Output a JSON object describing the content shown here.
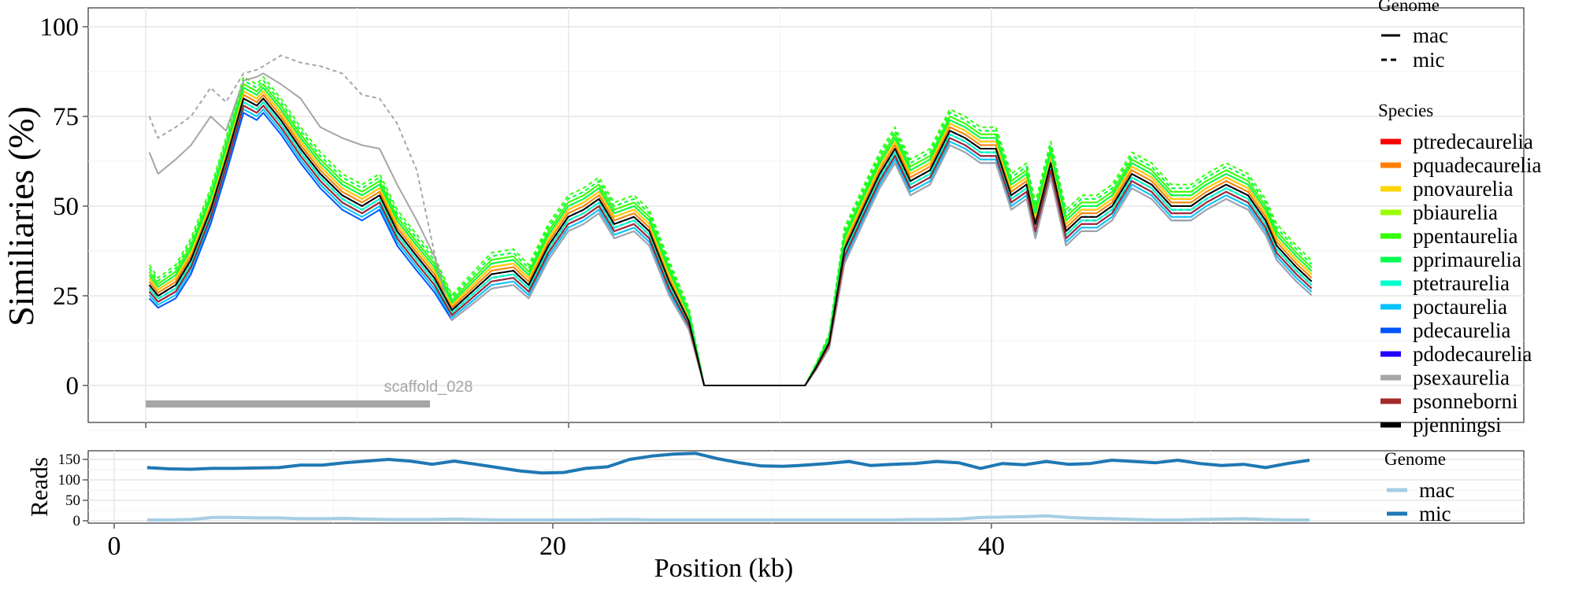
{
  "chart_data": [
    {
      "type": "line",
      "panel": "similarity",
      "ylabel": "Similiaries (%)",
      "xlabel": "",
      "ylim": [
        -10,
        105
      ],
      "xlim": [
        -1.2,
        57.7
      ],
      "yticks": [
        0,
        25,
        50,
        75,
        100
      ],
      "ytick_labels": [
        "0",
        "25",
        "50",
        "75",
        "100"
      ],
      "xticks_unlabeled": [
        1.44,
        20.72,
        40
      ],
      "grid": true,
      "annotation": {
        "label": "scaffold_028",
        "x_start": 1.44,
        "x_end": 14.4,
        "y": -5,
        "color": "#A6A6A6"
      },
      "x": [
        1.6,
        2.0,
        2.8,
        3.5,
        4.4,
        5.1,
        5.9,
        6.5,
        6.8,
        7.6,
        8.5,
        9.4,
        10.4,
        11.3,
        12.1,
        12.9,
        13.8,
        14.6,
        15.4,
        16.3,
        17.2,
        18.2,
        18.9,
        19.8,
        20.7,
        21.4,
        22.1,
        22.8,
        23.7,
        24.4,
        25.3,
        26.2,
        26.9,
        28,
        29,
        30,
        31.5,
        32,
        32.6,
        33.3,
        34.2,
        34.9,
        35.6,
        36.3,
        37.2,
        38.1,
        38.8,
        39.5,
        40.2,
        40.9,
        41.6,
        42.0,
        42.7,
        43.4,
        44.1,
        44.8,
        45.5,
        46.4,
        47.3,
        48.2,
        49.1,
        49.8,
        50.7,
        51.7,
        52.5,
        53.0,
        53.9,
        54.6
      ],
      "base_profile": [
        28,
        25,
        28,
        35,
        49,
        63,
        80,
        78,
        80,
        74,
        66,
        59,
        53,
        50,
        53,
        43,
        36,
        30,
        21,
        26,
        31,
        32,
        28,
        39,
        47,
        49,
        52,
        45,
        47,
        43,
        29,
        18,
        0,
        0,
        0,
        0,
        0,
        5,
        12,
        38,
        50,
        59,
        66,
        57,
        60,
        71,
        69,
        66,
        66,
        53,
        56,
        45,
        62,
        43,
        47,
        47,
        50,
        59,
        56,
        50,
        50,
        53,
        56,
        53,
        46,
        39,
        33,
        29
      ],
      "series_note": "each series = base_profile + offset (scaled toward 0 near zero similarity); early_values override the first points",
      "species": [
        {
          "name": "ptredecaurelia",
          "color": "#FF0000",
          "offset": {
            "mac": 2,
            "mic": 3
          }
        },
        {
          "name": "pquadecaurelia",
          "color": "#FF7F00",
          "offset": {
            "mac": 1,
            "mic": 2
          }
        },
        {
          "name": "pnovaurelia",
          "color": "#FFD500",
          "offset": {
            "mac": 2,
            "mic": 4
          }
        },
        {
          "name": "pbiaurelia",
          "color": "#99FF00",
          "offset": {
            "mac": 3,
            "mic": 5
          }
        },
        {
          "name": "ppentaurelia",
          "color": "#33FF00",
          "offset": {
            "mac": 4,
            "mic": 6
          }
        },
        {
          "name": "pprimaurelia",
          "color": "#00FF4D",
          "offset": {
            "mac": 3,
            "mic": 5
          }
        },
        {
          "name": "ptetraurelia",
          "color": "#00FFCC",
          "offset": {
            "mac": -1,
            "mic": 1
          }
        },
        {
          "name": "poctaurelia",
          "color": "#00C3FF",
          "offset": {
            "mac": -3,
            "mic": -1
          }
        },
        {
          "name": "pdecaurelia",
          "color": "#0055FF",
          "offset": {
            "mac": -4,
            "mic": -2
          }
        },
        {
          "name": "pdodecaurelia",
          "color": "#2200FF",
          "offset": {
            "mac": -2,
            "mic": 0
          }
        },
        {
          "name": "psexaurelia",
          "color": "#A6A6A6",
          "offset": {
            "mac": -4,
            "mic": -3
          },
          "early_values": {
            "mac": [
              65,
              59,
              63,
              67,
              75,
              71,
              85,
              86,
              87,
              84,
              80,
              72,
              69,
              67,
              66,
              56,
              46,
              36
            ],
            "mic": [
              75,
              69,
              72,
              75,
              83,
              79,
              87,
              88,
              89,
              92,
              90,
              89,
              87,
              81,
              80,
              73,
              60,
              37
            ]
          }
        },
        {
          "name": "psonneborni",
          "color": "#A52A2A",
          "offset": {
            "mac": -2,
            "mic": -1
          }
        },
        {
          "name": "pjenningsi",
          "color": "#000000",
          "offset": {
            "mac": 0,
            "mic": -1
          }
        }
      ],
      "legend": {
        "genome_title": "Genome",
        "genome_entries": [
          {
            "label": "mac",
            "linetype": "solid"
          },
          {
            "label": "mic",
            "linetype": "dashed"
          }
        ],
        "species_title": "Species",
        "placement": "right"
      }
    },
    {
      "type": "line",
      "panel": "reads",
      "ylabel": "Reads",
      "xlabel": "Position (kb)",
      "ylim": [
        -5,
        170
      ],
      "xlim": [
        -1.2,
        57.7
      ],
      "yticks": [
        0,
        50,
        100,
        150
      ],
      "ytick_labels": [
        "0",
        "50",
        "100",
        "150"
      ],
      "xticks": [
        0,
        20,
        40
      ],
      "xtick_labels": [
        "0",
        "20",
        "40"
      ],
      "grid": true,
      "x_start": 1.5,
      "x_step": 1,
      "series": [
        {
          "name": "mac",
          "color": "#A6CEE3",
          "values": [
            2,
            2,
            3,
            8,
            8,
            7,
            7,
            5,
            5,
            6,
            4,
            3,
            3,
            3,
            4,
            3,
            2,
            2,
            2,
            2,
            2,
            3,
            3,
            2,
            2,
            2,
            2,
            2,
            2,
            2,
            2,
            2,
            2,
            2,
            2,
            3,
            3,
            4,
            8,
            9,
            10,
            12,
            8,
            6,
            5,
            3,
            2,
            2,
            3,
            4,
            5,
            3,
            2,
            2
          ]
        },
        {
          "name": "mic",
          "color": "#1F78B4",
          "values": [
            130,
            127,
            126,
            128,
            128,
            129,
            130,
            136,
            136,
            142,
            146,
            150,
            146,
            138,
            146,
            138,
            130,
            122,
            117,
            118,
            128,
            132,
            150,
            158,
            163,
            165,
            152,
            142,
            134,
            133,
            136,
            140,
            145,
            135,
            138,
            140,
            145,
            142,
            128,
            140,
            137,
            145,
            138,
            140,
            148,
            145,
            142,
            148,
            140,
            135,
            138,
            130,
            140,
            148
          ]
        }
      ],
      "legend": {
        "title": "Genome",
        "placement": "right"
      }
    }
  ]
}
